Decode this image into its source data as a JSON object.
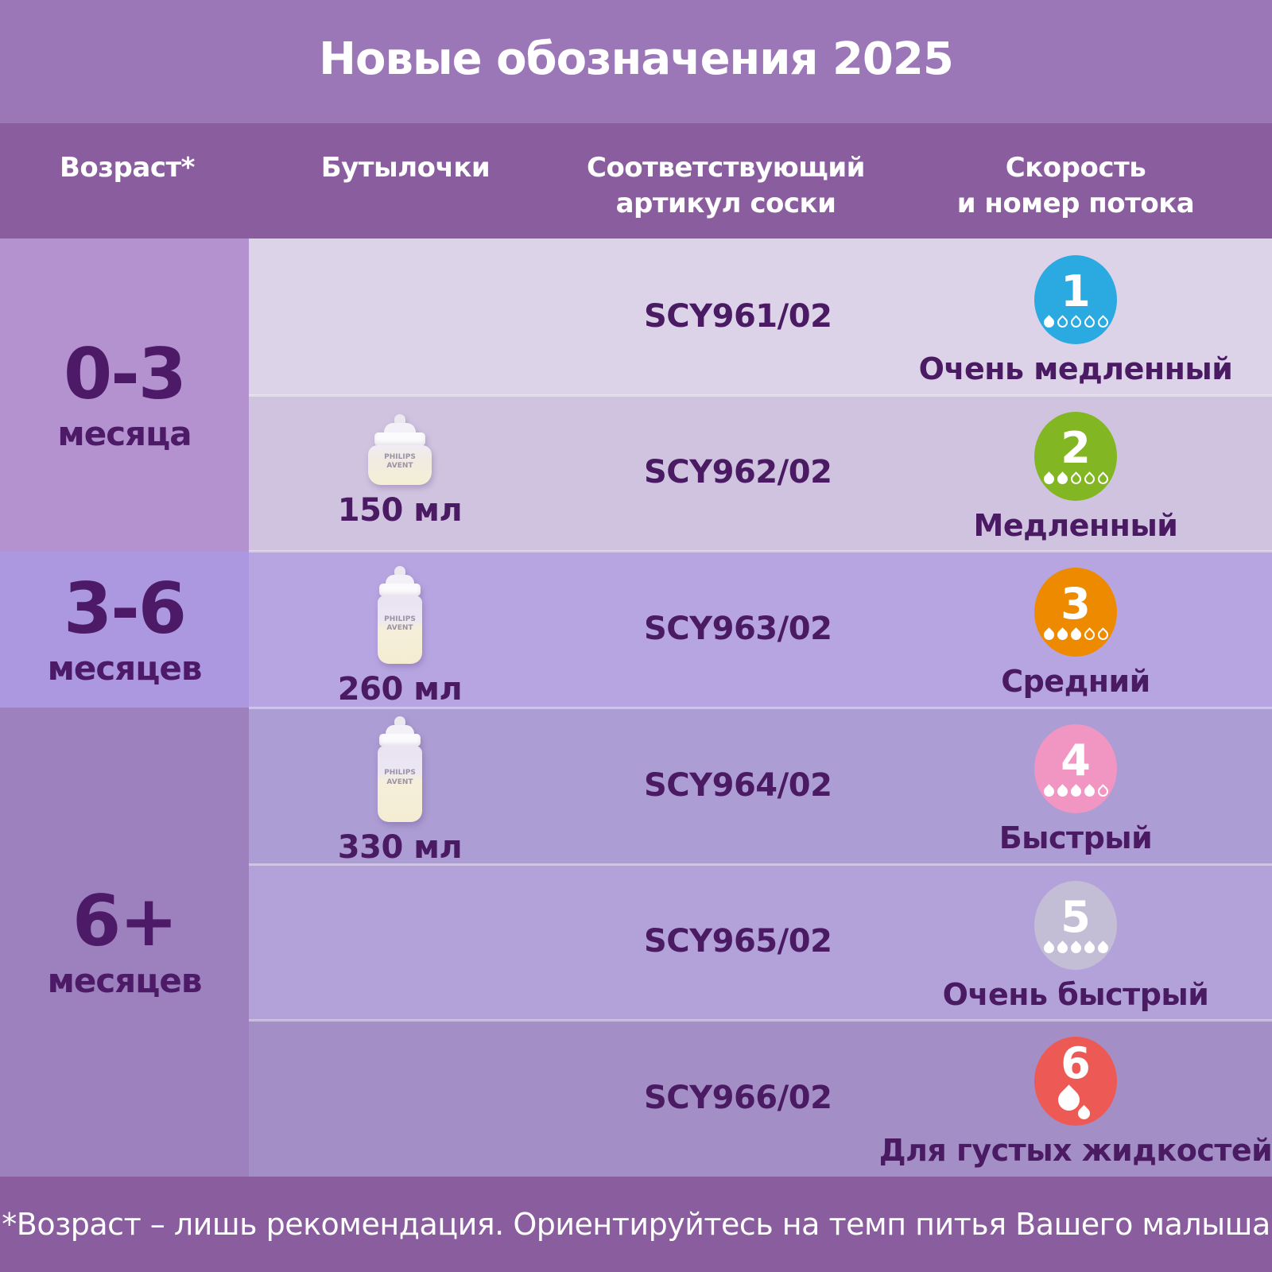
{
  "title": "Новые обозначения 2025",
  "footer_note": "*Возраст – лишь рекомендация. Ориентируйтесь на темп питья Вашего малыша",
  "columns": {
    "age": "Возраст*",
    "bottles": "Бутылочки",
    "article_line1": "Соответствующий",
    "article_line2": "артикул соски",
    "flow_line1": "Скорость",
    "flow_line2": "и номер потока"
  },
  "age_groups": [
    {
      "value": "0-3",
      "unit": "месяца"
    },
    {
      "value": "3-6",
      "unit": "месяцев"
    },
    {
      "value": "6+",
      "unit": "месяцев"
    }
  ],
  "rows": [
    {
      "article": "SCY961/02",
      "flow_number": "1",
      "flow_label": "Очень медленный",
      "flow_color": "#2BA9E1",
      "drops_filled": 1,
      "drops_total": 5
    },
    {
      "article": "SCY962/02",
      "flow_number": "2",
      "flow_label": "Медленный",
      "flow_color": "#82B622",
      "drops_filled": 2,
      "drops_total": 5,
      "bottle_volume": "150 мл",
      "bottle_brand": "PHILIPS AVENT"
    },
    {
      "article": "SCY963/02",
      "flow_number": "3",
      "flow_label": "Средний",
      "flow_color": "#EE8A00",
      "drops_filled": 3,
      "drops_total": 5,
      "bottle_volume": "260 мл",
      "bottle_brand": "PHILIPS AVENT"
    },
    {
      "article": "SCY964/02",
      "flow_number": "4",
      "flow_label": "Быстрый",
      "flow_color": "#F195C3",
      "drops_filled": 4,
      "drops_total": 5,
      "bottle_volume": "330 мл",
      "bottle_brand": "PHILIPS AVENT"
    },
    {
      "article": "SCY965/02",
      "flow_number": "5",
      "flow_label": "Очень быстрый",
      "flow_color": "#C4BDD6",
      "drops_filled": 5,
      "drops_total": 5
    },
    {
      "article": "SCY966/02",
      "flow_number": "6",
      "flow_label": "Для густых жидкостей",
      "flow_color": "#ED5A55",
      "drops_icon": "thick-liquid-drop"
    }
  ],
  "colors": {
    "title_band": "#9B77B7",
    "header_band": "#8A5D9E",
    "footer_band": "#8A5D9E",
    "row_backgrounds": [
      "#DDD3E9",
      "#D0C3E0",
      "#B7A5E2",
      "#AC9DD4",
      "#B2A2D9",
      "#A48EC6"
    ],
    "age_backgrounds": [
      "#B491CF",
      "#AC98E0",
      "#9D81BF"
    ],
    "text_dark": "#4A1A63",
    "text_light": "#FFFFFF"
  },
  "chart_data": {
    "type": "table",
    "title": "Новые обозначения 2025",
    "columns": [
      "Возраст*",
      "Бутылочки",
      "Соответствующий артикул соски",
      "Скорость и номер потока"
    ],
    "rows": [
      [
        "0-3 месяца",
        "",
        "SCY961/02",
        "1 — Очень медленный"
      ],
      [
        "0-3 месяца",
        "150 мл",
        "SCY962/02",
        "2 — Медленный"
      ],
      [
        "3-6 месяцев",
        "260 мл",
        "SCY963/02",
        "3 — Средний"
      ],
      [
        "6+ месяцев",
        "330 мл",
        "SCY964/02",
        "4 — Быстрый"
      ],
      [
        "6+ месяцев",
        "",
        "SCY965/02",
        "5 — Очень быстрый"
      ],
      [
        "6+ месяцев",
        "",
        "SCY966/02",
        "6 — Для густых жидкостей"
      ]
    ],
    "footnote": "*Возраст – лишь рекомендация. Ориентируйтесь на темп питья Вашего малыша"
  }
}
